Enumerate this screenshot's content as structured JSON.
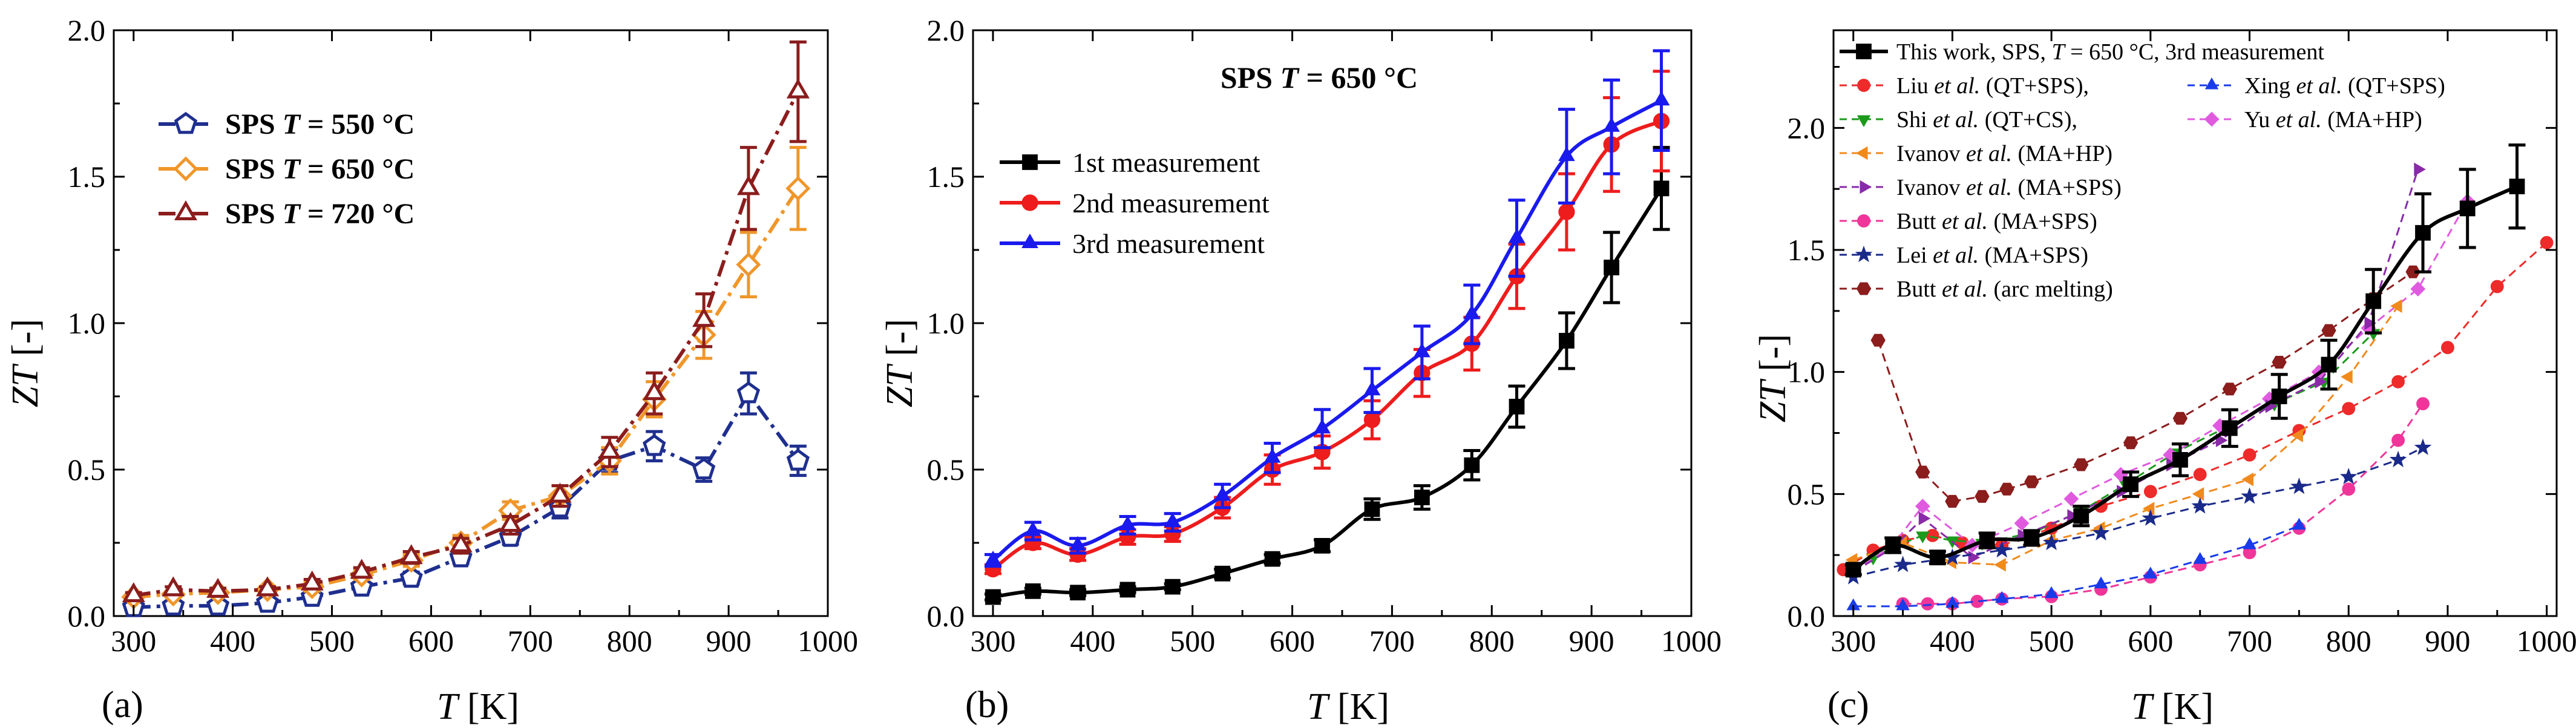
{
  "chart_data": [
    {
      "panel": "(a)",
      "type": "line",
      "xlabel_main": "T",
      "xlabel_unit": "[K]",
      "ylabel_main": "ZT",
      "ylabel_unit": "[-]",
      "xlim": [
        280,
        1000
      ],
      "ylim": [
        0,
        2.0
      ],
      "xticks": [
        "300",
        "400",
        "500",
        "600",
        "700",
        "800",
        "900",
        "1000"
      ],
      "yticks": [
        "0.0",
        "0.5",
        "1.0",
        "1.5",
        "2.0"
      ],
      "legend_prefix": "SPS",
      "legend_var": "T",
      "series": [
        {
          "name": "SPS T = 550 °C",
          "label_rest": "= 550 °C",
          "color": "#1f2f8f",
          "marker": "pentagon",
          "dash": "28,10,6,10",
          "x": [
            300,
            340,
            385,
            435,
            480,
            530,
            580,
            630,
            680,
            730,
            780,
            825,
            875,
            920,
            970
          ],
          "y": [
            0.03,
            0.035,
            0.035,
            0.045,
            0.065,
            0.1,
            0.13,
            0.2,
            0.27,
            0.37,
            0.53,
            0.58,
            0.5,
            0.76,
            0.53
          ],
          "err": [
            0.01,
            0.01,
            0.01,
            0.01,
            0.01,
            0.015,
            0.02,
            0.02,
            0.025,
            0.035,
            0.04,
            0.05,
            0.04,
            0.07,
            0.05
          ]
        },
        {
          "name": "SPS T = 650 °C",
          "label_rest": "= 650 °C",
          "color": "#f0962a",
          "marker": "diamond",
          "dash": "28,10,6,10",
          "x": [
            300,
            340,
            385,
            435,
            480,
            530,
            580,
            630,
            680,
            730,
            780,
            825,
            875,
            920,
            970
          ],
          "y": [
            0.065,
            0.075,
            0.08,
            0.09,
            0.1,
            0.14,
            0.19,
            0.25,
            0.36,
            0.41,
            0.53,
            0.74,
            0.96,
            1.2,
            1.46
          ],
          "err": [
            0.01,
            0.01,
            0.01,
            0.01,
            0.015,
            0.015,
            0.02,
            0.025,
            0.03,
            0.035,
            0.045,
            0.06,
            0.08,
            0.11,
            0.14
          ]
        },
        {
          "name": "SPS T = 720 °C",
          "label_rest": "= 720 °C",
          "color": "#8b1d1d",
          "marker": "triangle",
          "dash": "28,10,6,10",
          "x": [
            300,
            340,
            385,
            435,
            480,
            530,
            580,
            630,
            680,
            730,
            780,
            825,
            875,
            920,
            970
          ],
          "y": [
            0.07,
            0.09,
            0.085,
            0.09,
            0.11,
            0.15,
            0.2,
            0.24,
            0.31,
            0.41,
            0.56,
            0.76,
            1.01,
            1.46,
            1.79
          ],
          "err": [
            0.01,
            0.01,
            0.01,
            0.01,
            0.015,
            0.015,
            0.02,
            0.025,
            0.03,
            0.035,
            0.05,
            0.07,
            0.09,
            0.14,
            0.17
          ]
        }
      ]
    },
    {
      "panel": "(b)",
      "type": "line",
      "title_prefix": "SPS",
      "title_var": "T",
      "title_rest": "= 650 °C",
      "xlabel_main": "T",
      "xlabel_unit": "[K]",
      "ylabel_main": "ZT",
      "ylabel_unit": "[-]",
      "xlim": [
        280,
        1000
      ],
      "ylim": [
        0,
        2.0
      ],
      "xticks": [
        "300",
        "400",
        "500",
        "600",
        "700",
        "800",
        "900",
        "1000"
      ],
      "yticks": [
        "0.0",
        "0.5",
        "1.0",
        "1.5",
        "2.0"
      ],
      "series": [
        {
          "name": "1st measurement",
          "color": "#000000",
          "marker": "square",
          "x": [
            300,
            340,
            385,
            435,
            480,
            530,
            580,
            630,
            680,
            730,
            780,
            825,
            875,
            920,
            970
          ],
          "y": [
            0.065,
            0.085,
            0.08,
            0.09,
            0.1,
            0.145,
            0.195,
            0.24,
            0.365,
            0.405,
            0.515,
            0.715,
            0.94,
            1.19,
            1.46
          ],
          "err": [
            0.01,
            0.01,
            0.01,
            0.01,
            0.01,
            0.015,
            0.015,
            0.02,
            0.035,
            0.04,
            0.05,
            0.07,
            0.095,
            0.12,
            0.14
          ]
        },
        {
          "name": "2nd measurement",
          "color": "#ee1c1c",
          "marker": "circle",
          "x": [
            300,
            340,
            385,
            435,
            480,
            530,
            580,
            630,
            680,
            730,
            780,
            825,
            875,
            920,
            970
          ],
          "y": [
            0.16,
            0.25,
            0.21,
            0.27,
            0.28,
            0.37,
            0.5,
            0.56,
            0.67,
            0.83,
            0.93,
            1.16,
            1.38,
            1.61,
            1.69
          ],
          "err": [
            0.015,
            0.02,
            0.02,
            0.025,
            0.025,
            0.035,
            0.05,
            0.055,
            0.065,
            0.08,
            0.09,
            0.11,
            0.13,
            0.16,
            0.17
          ]
        },
        {
          "name": "3rd measurement",
          "color": "#1a1aee",
          "marker": "triangle",
          "x": [
            300,
            340,
            385,
            435,
            480,
            530,
            580,
            630,
            680,
            730,
            780,
            825,
            875,
            920,
            970
          ],
          "y": [
            0.19,
            0.29,
            0.24,
            0.31,
            0.32,
            0.41,
            0.54,
            0.64,
            0.77,
            0.9,
            1.03,
            1.29,
            1.57,
            1.67,
            1.76
          ],
          "err": [
            0.02,
            0.03,
            0.025,
            0.03,
            0.03,
            0.04,
            0.05,
            0.065,
            0.075,
            0.09,
            0.1,
            0.13,
            0.16,
            0.16,
            0.17
          ]
        }
      ]
    },
    {
      "panel": "(c)",
      "type": "line",
      "xlabel_main": "T",
      "xlabel_unit": "[K]",
      "ylabel_main": "ZT",
      "ylabel_unit": "[-]",
      "xlim": [
        280,
        1010
      ],
      "ylim": [
        0,
        2.4
      ],
      "xticks": [
        "300",
        "400",
        "500",
        "600",
        "700",
        "800",
        "900",
        "1000"
      ],
      "yticks": [
        "0.0",
        "0.5",
        "1.0",
        "1.5",
        "2.0"
      ],
      "legend": [
        {
          "author": "",
          "etal": "",
          "pre": "This work, SPS, ",
          "var": "T",
          "post": " = 650 °C, 3rd measurement"
        },
        {
          "author": "Liu",
          "etal": "et al.",
          "post": "(QT+SPS),"
        },
        {
          "author": "Xing",
          "etal": "et al.",
          "post": "(QT+SPS)"
        },
        {
          "author": "Shi",
          "etal": "et al.",
          "post": "(QT+CS),"
        },
        {
          "author": "Yu",
          "etal": "et al.",
          "post": "(MA+HP)"
        },
        {
          "author": "Ivanov",
          "etal": "et al.",
          "post": "(MA+HP)"
        },
        {
          "author": "Ivanov",
          "etal": "et al.",
          "post": "(MA+SPS)"
        },
        {
          "author": "Butt",
          "etal": "et al.",
          "post": "(MA+SPS)"
        },
        {
          "author": "Lei",
          "etal": "et al.",
          "post": "(MA+SPS)"
        },
        {
          "author": "Butt",
          "etal": "et al.",
          "post": "(arc melting)"
        }
      ],
      "series": [
        {
          "key": "this_work",
          "color": "#000000",
          "marker": "square",
          "solid": true,
          "x": [
            300,
            340,
            385,
            435,
            480,
            530,
            580,
            630,
            680,
            730,
            780,
            825,
            875,
            920,
            970
          ],
          "y": [
            0.19,
            0.29,
            0.24,
            0.31,
            0.32,
            0.41,
            0.54,
            0.64,
            0.77,
            0.9,
            1.03,
            1.29,
            1.57,
            1.67,
            1.76
          ],
          "err": [
            0.02,
            0.03,
            0.025,
            0.03,
            0.03,
            0.04,
            0.05,
            0.065,
            0.075,
            0.09,
            0.1,
            0.13,
            0.16,
            0.16,
            0.17
          ]
        },
        {
          "key": "liu",
          "color": "#ee2a2a",
          "marker": "circle",
          "x": [
            290,
            320,
            350,
            380,
            410,
            450,
            500,
            550,
            600,
            650,
            700,
            750,
            800,
            850,
            900,
            950,
            1000
          ],
          "y": [
            0.19,
            0.27,
            0.31,
            0.33,
            0.3,
            0.29,
            0.36,
            0.45,
            0.51,
            0.58,
            0.66,
            0.76,
            0.85,
            0.96,
            1.1,
            1.35,
            1.53
          ]
        },
        {
          "key": "xing",
          "color": "#1a3bea",
          "marker": "triangle",
          "x": [
            300,
            350,
            400,
            450,
            500,
            550,
            600,
            650,
            700,
            750
          ],
          "y": [
            0.04,
            0.04,
            0.05,
            0.07,
            0.09,
            0.13,
            0.17,
            0.23,
            0.29,
            0.37
          ]
        },
        {
          "key": "shi",
          "color": "#1b9a1b",
          "marker": "triangle-down",
          "x": [
            300,
            320,
            345,
            370,
            400,
            430,
            480,
            530,
            575,
            625,
            675,
            725,
            775,
            825
          ],
          "y": [
            0.2,
            0.24,
            0.29,
            0.33,
            0.31,
            0.3,
            0.34,
            0.43,
            0.54,
            0.67,
            0.77,
            0.87,
            0.96,
            1.16
          ]
        },
        {
          "key": "yu",
          "color": "#e05ae0",
          "marker": "diamond",
          "x": [
            300,
            340,
            370,
            420,
            470,
            520,
            570,
            620,
            670,
            720,
            770,
            820,
            870,
            920
          ],
          "y": [
            0.18,
            0.29,
            0.45,
            0.29,
            0.38,
            0.48,
            0.58,
            0.66,
            0.78,
            0.89,
            1.0,
            1.18,
            1.34,
            1.7
          ]
        },
        {
          "key": "ivanov_hp",
          "color": "#f08a1c",
          "marker": "triangle-left",
          "x": [
            300,
            350,
            400,
            450,
            500,
            550,
            600,
            650,
            700,
            750,
            800,
            850
          ],
          "y": [
            0.23,
            0.3,
            0.22,
            0.21,
            0.31,
            0.36,
            0.44,
            0.5,
            0.56,
            0.74,
            0.98,
            1.27
          ]
        },
        {
          "key": "ivanov_sps",
          "color": "#8a2aa8",
          "marker": "triangle-right",
          "x": [
            300,
            340,
            370,
            420,
            470,
            520,
            570,
            620,
            670,
            720,
            770,
            820,
            870
          ],
          "y": [
            0.18,
            0.28,
            0.4,
            0.24,
            0.33,
            0.41,
            0.51,
            0.62,
            0.72,
            0.86,
            0.96,
            1.2,
            1.83
          ]
        },
        {
          "key": "butt_sps",
          "color": "#f0359a",
          "marker": "circle",
          "x": [
            350,
            375,
            400,
            425,
            450,
            500,
            550,
            600,
            650,
            700,
            750,
            800,
            850,
            875
          ],
          "y": [
            0.05,
            0.05,
            0.05,
            0.06,
            0.07,
            0.08,
            0.11,
            0.16,
            0.21,
            0.26,
            0.36,
            0.52,
            0.72,
            0.87
          ]
        },
        {
          "key": "lei",
          "color": "#1a2a8a",
          "marker": "star",
          "x": [
            300,
            350,
            400,
            450,
            500,
            550,
            600,
            650,
            700,
            750,
            800,
            850,
            875
          ],
          "y": [
            0.16,
            0.21,
            0.24,
            0.27,
            0.3,
            0.34,
            0.4,
            0.45,
            0.49,
            0.53,
            0.57,
            0.64,
            0.69
          ]
        },
        {
          "key": "butt_arc",
          "color": "#8b1d1d",
          "marker": "hexagon",
          "x": [
            325,
            370,
            400,
            430,
            455,
            480,
            530,
            580,
            630,
            680,
            730,
            780,
            825,
            865
          ],
          "y": [
            1.13,
            0.59,
            0.47,
            0.49,
            0.52,
            0.55,
            0.62,
            0.71,
            0.81,
            0.93,
            1.04,
            1.17,
            1.3,
            1.41
          ]
        }
      ]
    }
  ]
}
